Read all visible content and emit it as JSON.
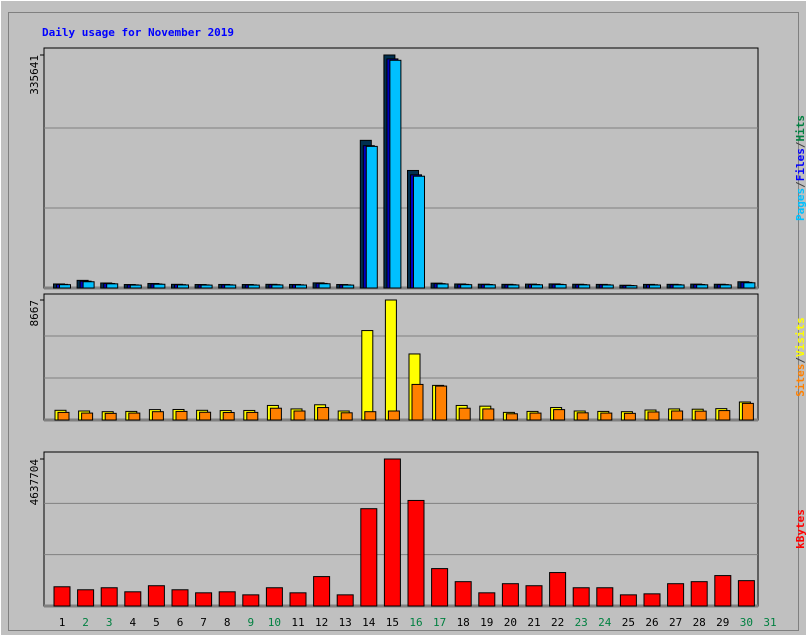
{
  "chart_data": [
    {
      "type": "bar",
      "title": "Daily usage for November 2019",
      "legend_separator": "/",
      "ylim": [
        0,
        335641
      ],
      "yticks": [
        335641
      ],
      "series": [
        {
          "name": "Hits",
          "color": "#008040",
          "bar_color": "#003050",
          "values": [
            5800,
            11000,
            7200,
            5000,
            6500,
            5300,
            5000,
            5100,
            5000,
            5300,
            5100,
            7400,
            5000,
            212700,
            335641,
            169300,
            7000,
            5800,
            5500,
            5300,
            5600,
            5900,
            5400,
            5200,
            4000,
            5200,
            5300,
            5600,
            5400,
            9000,
            0
          ]
        },
        {
          "name": "Files",
          "color": "#0000ff",
          "bar_color": "#0000c0",
          "values": [
            5200,
            9800,
            6500,
            4500,
            5800,
            4800,
            4500,
            4600,
            4500,
            4800,
            4600,
            6600,
            4500,
            205000,
            330000,
            163000,
            6300,
            5200,
            5000,
            4800,
            5000,
            5300,
            4900,
            4700,
            3600,
            4700,
            4800,
            5000,
            4900,
            8100,
            0
          ]
        },
        {
          "name": "Pages",
          "color": "#00c0ff",
          "bar_color": "#00c0ff",
          "values": [
            4800,
            9000,
            6000,
            4200,
            5400,
            4400,
            4200,
            4300,
            4200,
            4400,
            4300,
            6100,
            4200,
            204000,
            328000,
            161000,
            5800,
            4800,
            4600,
            4400,
            4600,
            4900,
            4500,
            4300,
            3300,
            4300,
            4400,
            4600,
            4500,
            7500,
            0
          ]
        }
      ]
    },
    {
      "type": "bar",
      "ylim": [
        0,
        8667
      ],
      "yticks": [
        8667
      ],
      "legend_separator": "/",
      "series": [
        {
          "name": "Visits",
          "color": "#ffff00",
          "bar_color": "#ffff00",
          "values": [
            700,
            650,
            600,
            620,
            750,
            760,
            700,
            680,
            690,
            1050,
            800,
            1100,
            650,
            6460,
            8667,
            4770,
            2500,
            1050,
            1000,
            550,
            620,
            900,
            650,
            620,
            600,
            720,
            800,
            780,
            820,
            1300,
            0
          ]
        },
        {
          "name": "Sites",
          "color": "#ff8000",
          "bar_color": "#ff8000",
          "values": [
            550,
            500,
            480,
            500,
            600,
            620,
            560,
            540,
            550,
            850,
            650,
            900,
            520,
            600,
            650,
            2570,
            2450,
            850,
            800,
            450,
            500,
            750,
            520,
            500,
            480,
            580,
            650,
            640,
            680,
            1200,
            0
          ]
        }
      ]
    },
    {
      "type": "bar",
      "ylim": [
        0,
        4637704
      ],
      "yticks": [
        4637704
      ],
      "categories": [
        "1",
        "2",
        "3",
        "4",
        "5",
        "6",
        "7",
        "8",
        "9",
        "10",
        "11",
        "12",
        "13",
        "14",
        "15",
        "16",
        "17",
        "18",
        "19",
        "20",
        "21",
        "22",
        "23",
        "24",
        "25",
        "26",
        "27",
        "28",
        "29",
        "30",
        "31"
      ],
      "category_colors": [
        "#000000",
        "#008040",
        "#008040",
        "#000000",
        "#000000",
        "#000000",
        "#000000",
        "#000000",
        "#008040",
        "#008040",
        "#000000",
        "#000000",
        "#000000",
        "#000000",
        "#000000",
        "#008040",
        "#008040",
        "#000000",
        "#000000",
        "#000000",
        "#000000",
        "#000000",
        "#008040",
        "#008040",
        "#000000",
        "#000000",
        "#000000",
        "#000000",
        "#000000",
        "#008040",
        "#008040"
      ],
      "series": [
        {
          "name": "kBytes",
          "color": "#ff0000",
          "bar_color": "#ff0000",
          "values": [
            607000,
            512000,
            576000,
            448000,
            640000,
            512000,
            416000,
            448000,
            352000,
            576000,
            416000,
            928000,
            352000,
            3070000,
            4637704,
            3330000,
            1180000,
            768000,
            416000,
            704000,
            640000,
            1055000,
            576000,
            576000,
            352000,
            384000,
            704000,
            768000,
            960000,
            800000,
            0
          ]
        }
      ]
    }
  ]
}
